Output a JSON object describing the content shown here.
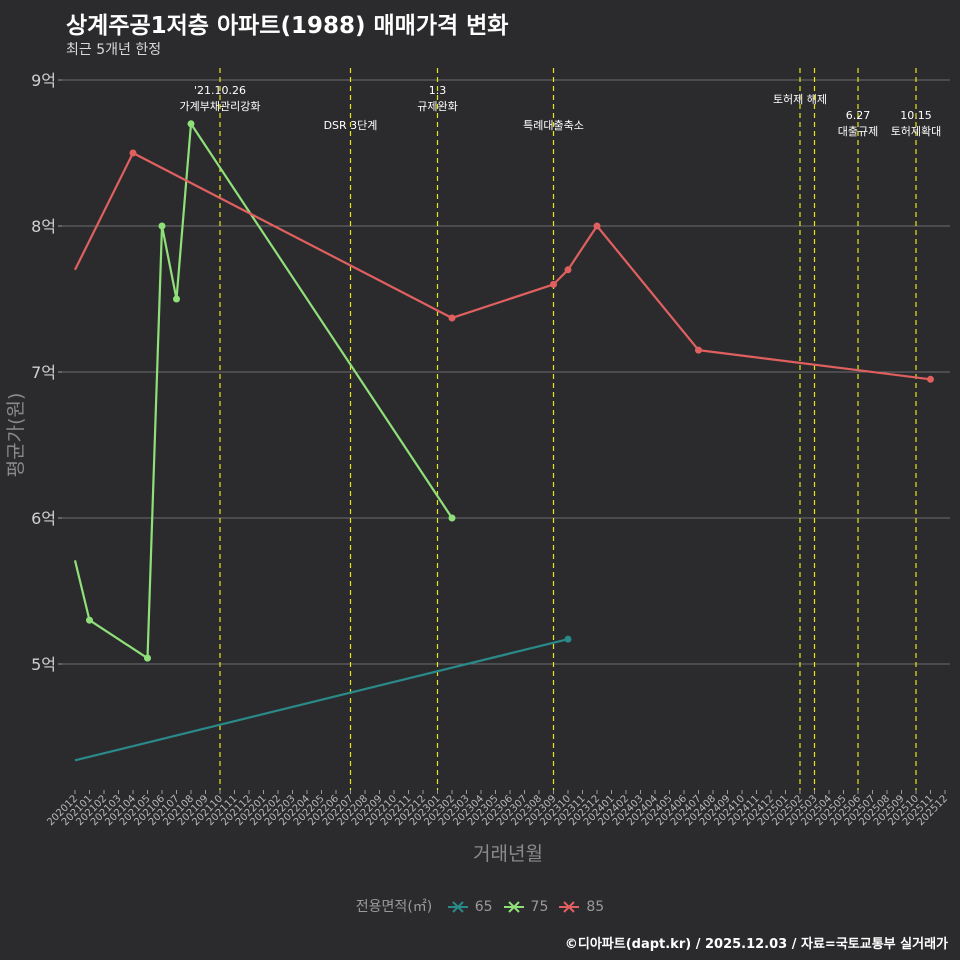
{
  "chart_data": {
    "type": "line",
    "title": "상계주공1저층 아파트(1988) 매매가격 변화",
    "subtitle": "최근 5개년 한정",
    "xlabel": "거래년월",
    "ylabel": "평균가(원)",
    "caption": "©디아파트(dapt.kr) / 2025.12.03 / 자료=국토교통부 실거래가",
    "legend_title": "전용면적(㎡)",
    "x_categories": [
      "202012",
      "202101",
      "202102",
      "202103",
      "202104",
      "202105",
      "202106",
      "202107",
      "202108",
      "202109",
      "202110",
      "202111",
      "202112",
      "202201",
      "202202",
      "202203",
      "202204",
      "202205",
      "202206",
      "202207",
      "202208",
      "202209",
      "202210",
      "202211",
      "202212",
      "202301",
      "202302",
      "202303",
      "202304",
      "202305",
      "202306",
      "202307",
      "202308",
      "202309",
      "202310",
      "202311",
      "202312",
      "202401",
      "202402",
      "202403",
      "202404",
      "202405",
      "202406",
      "202407",
      "202408",
      "202409",
      "202410",
      "202411",
      "202412",
      "202501",
      "202502",
      "202503",
      "202504",
      "202505",
      "202506",
      "202507",
      "202508",
      "202509",
      "202510",
      "202511",
      "202512"
    ],
    "ylim": [
      4.2,
      9.0
    ],
    "y_ticks": [
      5,
      6,
      7,
      8,
      9
    ],
    "y_tick_labels": [
      "5억",
      "6억",
      "7억",
      "8억",
      "9억"
    ],
    "series": [
      {
        "name": "65",
        "color": "#2a8a8a",
        "points": [
          {
            "x": "202012",
            "y": 4.34,
            "marker": false
          },
          {
            "x": "202310",
            "y": 5.17,
            "marker": true
          }
        ]
      },
      {
        "name": "75",
        "color": "#90e07a",
        "points": [
          {
            "x": "202012",
            "y": 5.71,
            "marker": false
          },
          {
            "x": "202101",
            "y": 5.3,
            "marker": true
          },
          {
            "x": "202105",
            "y": 5.04,
            "marker": true
          },
          {
            "x": "202106",
            "y": 8.0,
            "marker": true
          },
          {
            "x": "202107",
            "y": 7.5,
            "marker": true
          },
          {
            "x": "202108",
            "y": 8.7,
            "marker": true
          },
          {
            "x": "202302",
            "y": 6.0,
            "marker": true
          }
        ]
      },
      {
        "name": "85",
        "color": "#e06060",
        "points": [
          {
            "x": "202012",
            "y": 7.7,
            "marker": false
          },
          {
            "x": "202104",
            "y": 8.5,
            "marker": true
          },
          {
            "x": "202302",
            "y": 7.37,
            "marker": true
          },
          {
            "x": "202309",
            "y": 7.6,
            "marker": true
          },
          {
            "x": "202310",
            "y": 7.7,
            "marker": true
          },
          {
            "x": "202312",
            "y": 8.0,
            "marker": true
          },
          {
            "x": "202407",
            "y": 7.15,
            "marker": true
          },
          {
            "x": "202511",
            "y": 6.95,
            "marker": true
          }
        ]
      }
    ],
    "events": [
      {
        "x": "202110",
        "lines": [
          "'21.10.26",
          "가계부채관리강화"
        ],
        "row": 0
      },
      {
        "x": "202207",
        "lines": [
          "DSR 3단계"
        ],
        "row": 1
      },
      {
        "x": "202301",
        "lines": [
          "1.3",
          "규제완화"
        ],
        "row": 0
      },
      {
        "x": "202309",
        "lines": [
          "특례대출축소"
        ],
        "row": 1
      },
      {
        "x": "202502",
        "lines": [
          "토허제 해제"
        ],
        "row": 0
      },
      {
        "x": "202503",
        "lines": [],
        "row": 0
      },
      {
        "x": "202506",
        "lines": [
          "6.27",
          "대출규제"
        ],
        "row": 1
      },
      {
        "x": "202510",
        "lines": [
          "10.15",
          "토허제확대"
        ],
        "row": 1
      }
    ]
  }
}
